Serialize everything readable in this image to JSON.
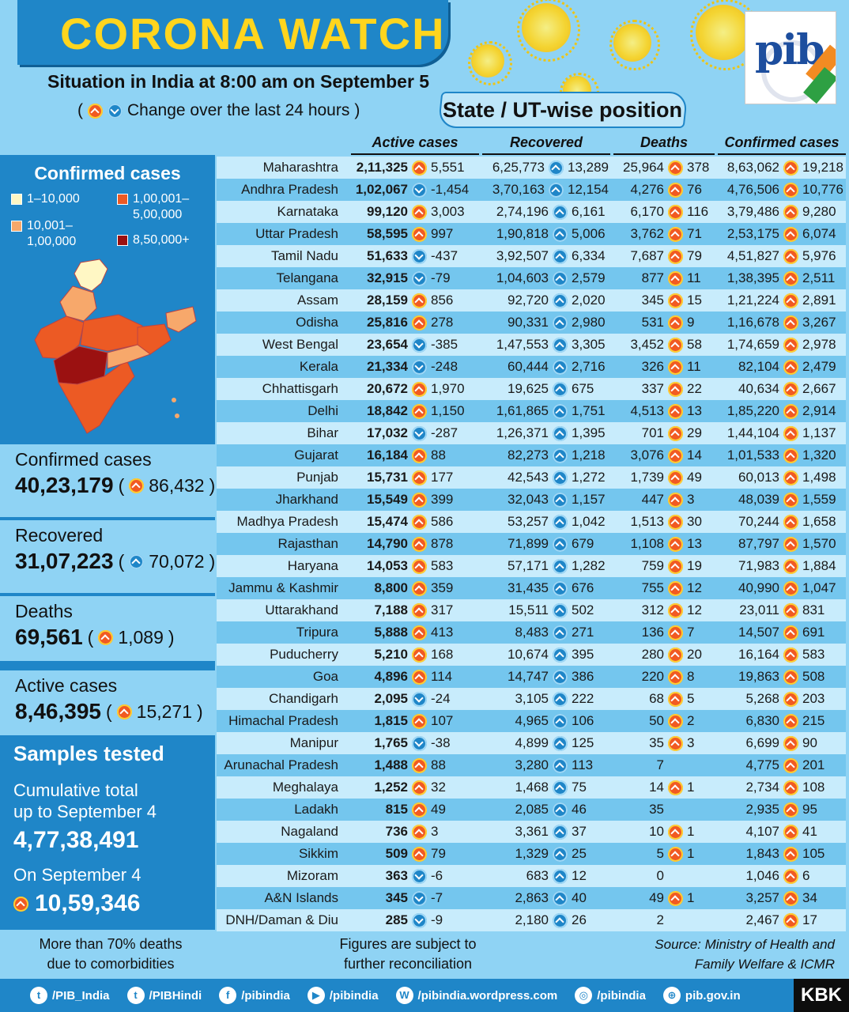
{
  "header": {
    "title": "CORONA WATCH",
    "subtitle": "Situation in India at 8:00 am on September 5",
    "change_note_open": "(",
    "change_note": "Change over the last 24 hours",
    "change_note_close": ")",
    "state_title": "State / UT-wise position",
    "logo_text": "pib"
  },
  "colors": {
    "banner": "#1f86c8",
    "title_yellow": "#ffd51e",
    "background": "#8fd3f4",
    "up_arrow": "#f15a22",
    "down_arrow": "#1f86c8",
    "legend_1": "#fff7c4",
    "legend_2": "#f7a86b",
    "legend_3": "#ec5a24",
    "legend_4": "#9b1111"
  },
  "map_panel": {
    "title": "Confirmed cases",
    "legend": [
      {
        "label": "1–10,000"
      },
      {
        "label": "10,001–\n1,00,000"
      },
      {
        "label": "1,00,001–\n5,00,000"
      },
      {
        "label": "8,50,000+"
      }
    ]
  },
  "summary": {
    "confirmed": {
      "label": "Confirmed cases",
      "value": "40,23,179",
      "change": "86,432"
    },
    "recovered": {
      "label": "Recovered",
      "value": "31,07,223",
      "change": "70,072"
    },
    "deaths": {
      "label": "Deaths",
      "value": "69,561",
      "change": "1,089"
    },
    "active": {
      "label": "Active cases",
      "value": "8,46,395",
      "change": "15,271"
    }
  },
  "samples": {
    "title": "Samples tested",
    "cumulative_label": "Cumulative total\nup to September 4",
    "cumulative_value": "4,77,38,491",
    "day_label": "On September 4",
    "day_value": "10,59,346"
  },
  "table": {
    "headers": [
      "Active cases",
      "Recovered",
      "Deaths",
      "Confirmed cases"
    ],
    "rows": [
      {
        "state": "Maharashtra",
        "active": "2,11,325",
        "active_dir": "up",
        "active_chg": "5,551",
        "rec": "6,25,773",
        "rec_chg": "13,289",
        "deaths": "25,964",
        "deaths_chg": "378",
        "conf": "8,63,062",
        "conf_chg": "19,218"
      },
      {
        "state": "Andhra Pradesh",
        "active": "1,02,067",
        "active_dir": "down",
        "active_chg": "-1,454",
        "rec": "3,70,163",
        "rec_chg": "12,154",
        "deaths": "4,276",
        "deaths_chg": "76",
        "conf": "4,76,506",
        "conf_chg": "10,776"
      },
      {
        "state": "Karnataka",
        "active": "99,120",
        "active_dir": "up",
        "active_chg": "3,003",
        "rec": "2,74,196",
        "rec_chg": "6,161",
        "deaths": "6,170",
        "deaths_chg": "116",
        "conf": "3,79,486",
        "conf_chg": "9,280"
      },
      {
        "state": "Uttar Pradesh",
        "active": "58,595",
        "active_dir": "up",
        "active_chg": "997",
        "rec": "1,90,818",
        "rec_chg": "5,006",
        "deaths": "3,762",
        "deaths_chg": "71",
        "conf": "2,53,175",
        "conf_chg": "6,074"
      },
      {
        "state": "Tamil Nadu",
        "active": "51,633",
        "active_dir": "down",
        "active_chg": "-437",
        "rec": "3,92,507",
        "rec_chg": "6,334",
        "deaths": "7,687",
        "deaths_chg": "79",
        "conf": "4,51,827",
        "conf_chg": "5,976"
      },
      {
        "state": "Telangana",
        "active": "32,915",
        "active_dir": "down",
        "active_chg": "-79",
        "rec": "1,04,603",
        "rec_chg": "2,579",
        "deaths": "877",
        "deaths_chg": "11",
        "conf": "1,38,395",
        "conf_chg": "2,511"
      },
      {
        "state": "Assam",
        "active": "28,159",
        "active_dir": "up",
        "active_chg": "856",
        "rec": "92,720",
        "rec_chg": "2,020",
        "deaths": "345",
        "deaths_chg": "15",
        "conf": "1,21,224",
        "conf_chg": "2,891"
      },
      {
        "state": "Odisha",
        "active": "25,816",
        "active_dir": "up",
        "active_chg": "278",
        "rec": "90,331",
        "rec_chg": "2,980",
        "deaths": "531",
        "deaths_chg": "9",
        "conf": "1,16,678",
        "conf_chg": "3,267"
      },
      {
        "state": "West Bengal",
        "active": "23,654",
        "active_dir": "down",
        "active_chg": "-385",
        "rec": "1,47,553",
        "rec_chg": "3,305",
        "deaths": "3,452",
        "deaths_chg": "58",
        "conf": "1,74,659",
        "conf_chg": "2,978"
      },
      {
        "state": "Kerala",
        "active": "21,334",
        "active_dir": "down",
        "active_chg": "-248",
        "rec": "60,444",
        "rec_chg": "2,716",
        "deaths": "326",
        "deaths_chg": "11",
        "conf": "82,104",
        "conf_chg": "2,479"
      },
      {
        "state": "Chhattisgarh",
        "active": "20,672",
        "active_dir": "up",
        "active_chg": "1,970",
        "rec": "19,625",
        "rec_chg": "675",
        "deaths": "337",
        "deaths_chg": "22",
        "conf": "40,634",
        "conf_chg": "2,667"
      },
      {
        "state": "Delhi",
        "active": "18,842",
        "active_dir": "up",
        "active_chg": "1,150",
        "rec": "1,61,865",
        "rec_chg": "1,751",
        "deaths": "4,513",
        "deaths_chg": "13",
        "conf": "1,85,220",
        "conf_chg": "2,914"
      },
      {
        "state": "Bihar",
        "active": "17,032",
        "active_dir": "down",
        "active_chg": "-287",
        "rec": "1,26,371",
        "rec_chg": "1,395",
        "deaths": "701",
        "deaths_chg": "29",
        "conf": "1,44,104",
        "conf_chg": "1,137"
      },
      {
        "state": "Gujarat",
        "active": "16,184",
        "active_dir": "up",
        "active_chg": "88",
        "rec": "82,273",
        "rec_chg": "1,218",
        "deaths": "3,076",
        "deaths_chg": "14",
        "conf": "1,01,533",
        "conf_chg": "1,320"
      },
      {
        "state": "Punjab",
        "active": "15,731",
        "active_dir": "up",
        "active_chg": "177",
        "rec": "42,543",
        "rec_chg": "1,272",
        "deaths": "1,739",
        "deaths_chg": "49",
        "conf": "60,013",
        "conf_chg": "1,498"
      },
      {
        "state": "Jharkhand",
        "active": "15,549",
        "active_dir": "up",
        "active_chg": "399",
        "rec": "32,043",
        "rec_chg": "1,157",
        "deaths": "447",
        "deaths_chg": "3",
        "conf": "48,039",
        "conf_chg": "1,559"
      },
      {
        "state": "Madhya Pradesh",
        "active": "15,474",
        "active_dir": "up",
        "active_chg": "586",
        "rec": "53,257",
        "rec_chg": "1,042",
        "deaths": "1,513",
        "deaths_chg": "30",
        "conf": "70,244",
        "conf_chg": "1,658"
      },
      {
        "state": "Rajasthan",
        "active": "14,790",
        "active_dir": "up",
        "active_chg": "878",
        "rec": "71,899",
        "rec_chg": "679",
        "deaths": "1,108",
        "deaths_chg": "13",
        "conf": "87,797",
        "conf_chg": "1,570"
      },
      {
        "state": "Haryana",
        "active": "14,053",
        "active_dir": "up",
        "active_chg": "583",
        "rec": "57,171",
        "rec_chg": "1,282",
        "deaths": "759",
        "deaths_chg": "19",
        "conf": "71,983",
        "conf_chg": "1,884"
      },
      {
        "state": "Jammu & Kashmir",
        "active": "8,800",
        "active_dir": "up",
        "active_chg": "359",
        "rec": "31,435",
        "rec_chg": "676",
        "deaths": "755",
        "deaths_chg": "12",
        "conf": "40,990",
        "conf_chg": "1,047"
      },
      {
        "state": "Uttarakhand",
        "active": "7,188",
        "active_dir": "up",
        "active_chg": "317",
        "rec": "15,511",
        "rec_chg": "502",
        "deaths": "312",
        "deaths_chg": "12",
        "conf": "23,011",
        "conf_chg": "831"
      },
      {
        "state": "Tripura",
        "active": "5,888",
        "active_dir": "up",
        "active_chg": "413",
        "rec": "8,483",
        "rec_chg": "271",
        "deaths": "136",
        "deaths_chg": "7",
        "conf": "14,507",
        "conf_chg": "691"
      },
      {
        "state": "Puducherry",
        "active": "5,210",
        "active_dir": "up",
        "active_chg": "168",
        "rec": "10,674",
        "rec_chg": "395",
        "deaths": "280",
        "deaths_chg": "20",
        "conf": "16,164",
        "conf_chg": "583"
      },
      {
        "state": "Goa",
        "active": "4,896",
        "active_dir": "up",
        "active_chg": "114",
        "rec": "14,747",
        "rec_chg": "386",
        "deaths": "220",
        "deaths_chg": "8",
        "conf": "19,863",
        "conf_chg": "508"
      },
      {
        "state": "Chandigarh",
        "active": "2,095",
        "active_dir": "down",
        "active_chg": "-24",
        "rec": "3,105",
        "rec_chg": "222",
        "deaths": "68",
        "deaths_chg": "5",
        "conf": "5,268",
        "conf_chg": "203"
      },
      {
        "state": "Himachal Pradesh",
        "active": "1,815",
        "active_dir": "up",
        "active_chg": "107",
        "rec": "4,965",
        "rec_chg": "106",
        "deaths": "50",
        "deaths_chg": "2",
        "conf": "6,830",
        "conf_chg": "215"
      },
      {
        "state": "Manipur",
        "active": "1,765",
        "active_dir": "down",
        "active_chg": "-38",
        "rec": "4,899",
        "rec_chg": "125",
        "deaths": "35",
        "deaths_chg": "3",
        "conf": "6,699",
        "conf_chg": "90"
      },
      {
        "state": "Arunachal Pradesh",
        "active": "1,488",
        "active_dir": "up",
        "active_chg": "88",
        "rec": "3,280",
        "rec_chg": "113",
        "deaths": "7",
        "deaths_chg": "",
        "conf": "4,775",
        "conf_chg": "201"
      },
      {
        "state": "Meghalaya",
        "active": "1,252",
        "active_dir": "up",
        "active_chg": "32",
        "rec": "1,468",
        "rec_chg": "75",
        "deaths": "14",
        "deaths_chg": "1",
        "conf": "2,734",
        "conf_chg": "108"
      },
      {
        "state": "Ladakh",
        "active": "815",
        "active_dir": "up",
        "active_chg": "49",
        "rec": "2,085",
        "rec_chg": "46",
        "deaths": "35",
        "deaths_chg": "",
        "conf": "2,935",
        "conf_chg": "95"
      },
      {
        "state": "Nagaland",
        "active": "736",
        "active_dir": "up",
        "active_chg": "3",
        "rec": "3,361",
        "rec_chg": "37",
        "deaths": "10",
        "deaths_chg": "1",
        "conf": "4,107",
        "conf_chg": "41"
      },
      {
        "state": "Sikkim",
        "active": "509",
        "active_dir": "up",
        "active_chg": "79",
        "rec": "1,329",
        "rec_chg": "25",
        "deaths": "5",
        "deaths_chg": "1",
        "conf": "1,843",
        "conf_chg": "105"
      },
      {
        "state": "Mizoram",
        "active": "363",
        "active_dir": "down",
        "active_chg": "-6",
        "rec": "683",
        "rec_chg": "12",
        "deaths": "0",
        "deaths_chg": "",
        "conf": "1,046",
        "conf_chg": "6"
      },
      {
        "state": "A&N Islands",
        "active": "345",
        "active_dir": "down",
        "active_chg": "-7",
        "rec": "2,863",
        "rec_chg": "40",
        "deaths": "49",
        "deaths_chg": "1",
        "conf": "3,257",
        "conf_chg": "34"
      },
      {
        "state": "DNH/Daman & Diu",
        "active": "285",
        "active_dir": "down",
        "active_chg": "-9",
        "rec": "2,180",
        "rec_chg": "26",
        "deaths": "2",
        "deaths_chg": "",
        "conf": "2,467",
        "conf_chg": "17"
      }
    ]
  },
  "footer": {
    "note_left": "More than 70% deaths\ndue to comorbidities",
    "note_mid": "Figures are subject to\nfurther reconciliation",
    "note_right": "Source: Ministry of Health and\nFamily Welfare & ICMR",
    "social": [
      {
        "icon": "twitter-icon",
        "glyph": "t",
        "label": "/PIB_India"
      },
      {
        "icon": "twitter-icon",
        "glyph": "t",
        "label": "/PIBHindi"
      },
      {
        "icon": "facebook-icon",
        "glyph": "f",
        "label": "/pibindia"
      },
      {
        "icon": "youtube-icon",
        "glyph": "▶",
        "label": "/pibindia"
      },
      {
        "icon": "wordpress-icon",
        "glyph": "W",
        "label": "/pibindia.wordpress.com"
      },
      {
        "icon": "instagram-icon",
        "glyph": "◎",
        "label": "/pibindia"
      },
      {
        "icon": "globe-icon",
        "glyph": "⊕",
        "label": "pib.gov.in"
      }
    ],
    "badge": "KBK"
  }
}
